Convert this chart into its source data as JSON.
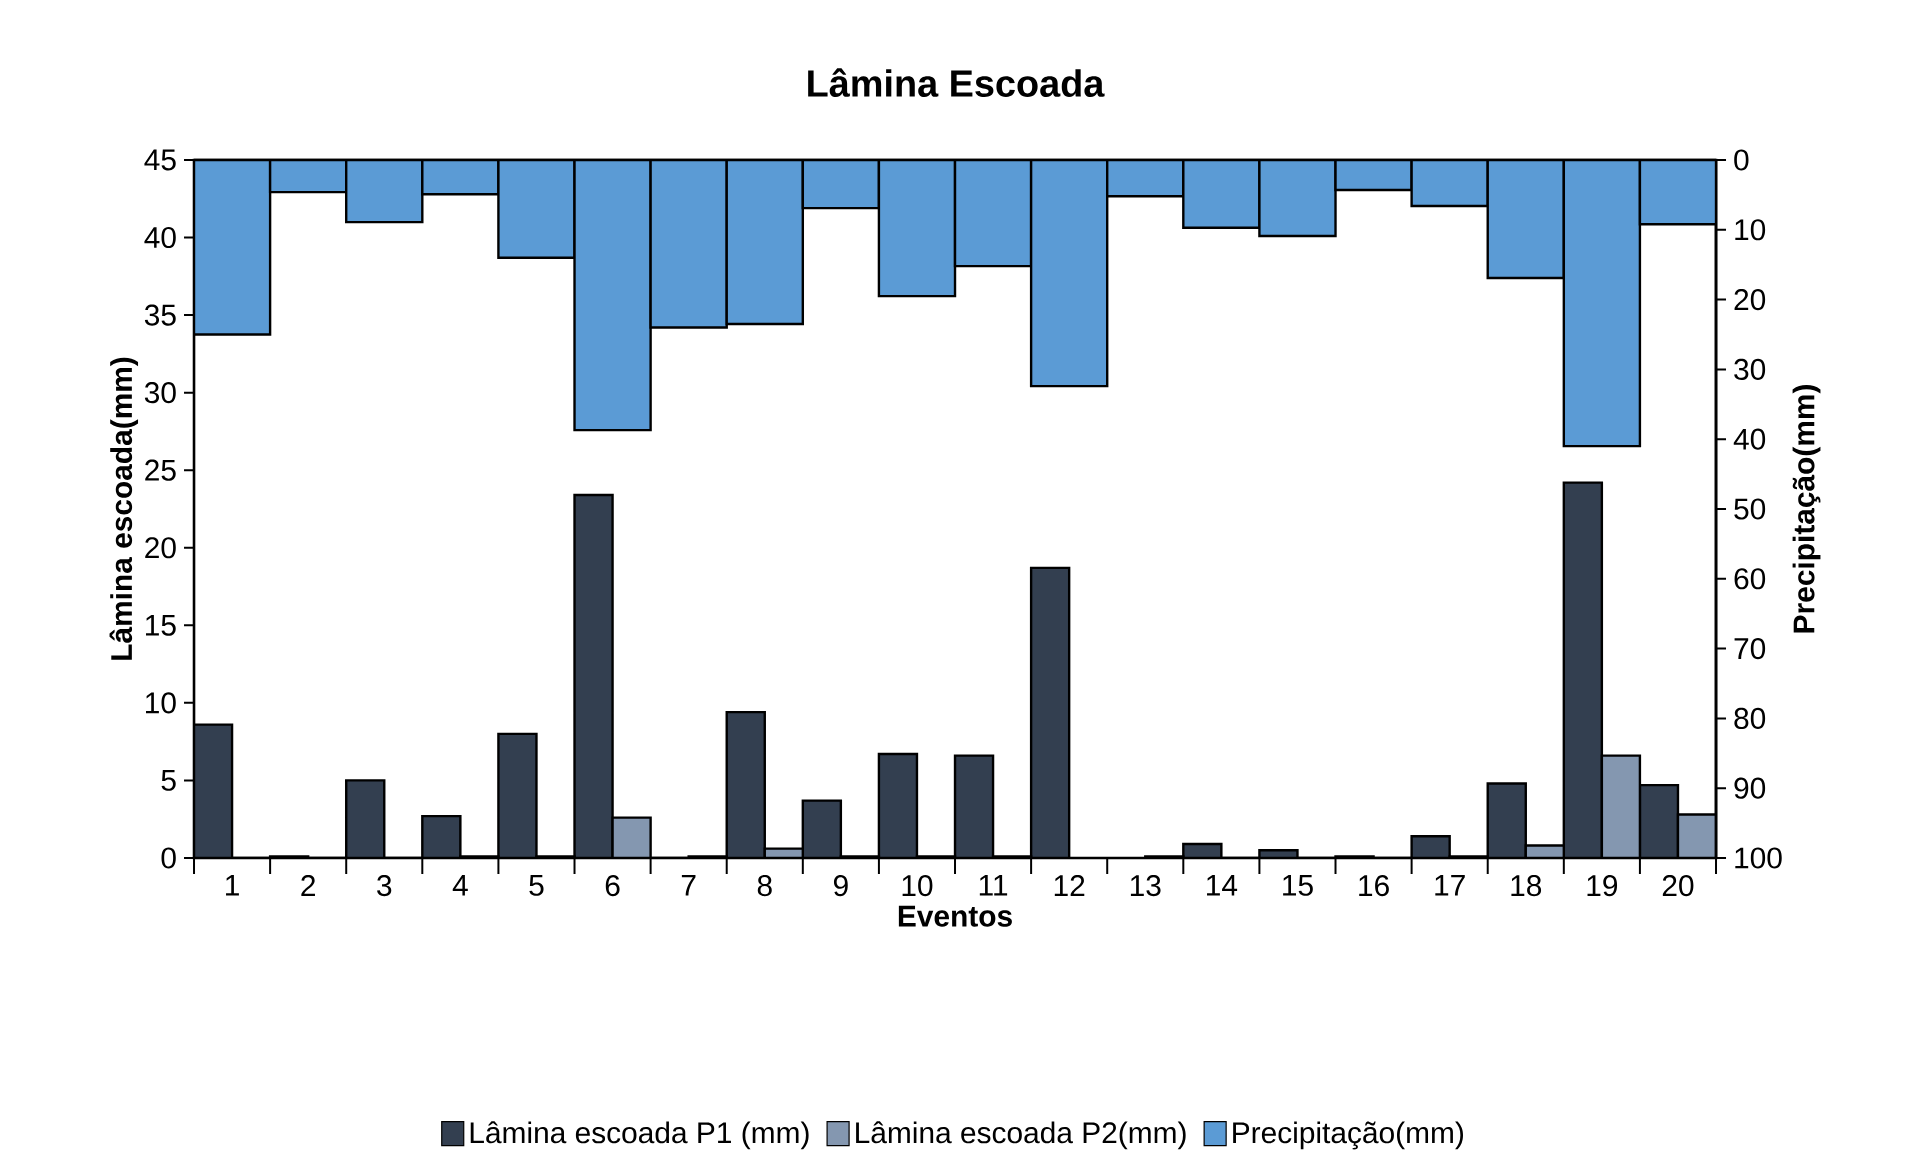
{
  "chart_data": {
    "type": "bar",
    "title": "Lâmina Escoada",
    "xlabel": "Eventos",
    "ylabel": "Lâmina escoada(mm)",
    "y2label": "Precipitação(mm)",
    "categories": [
      "1",
      "2",
      "3",
      "4",
      "5",
      "6",
      "7",
      "8",
      "9",
      "10",
      "11",
      "12",
      "13",
      "14",
      "15",
      "16",
      "17",
      "18",
      "19",
      "20"
    ],
    "series": [
      {
        "name": "Lâmina escoada P1 (mm)",
        "color": "#333f50",
        "values": [
          8.6,
          0.1,
          5.0,
          2.7,
          8.0,
          23.4,
          0,
          9.4,
          3.7,
          6.7,
          6.6,
          18.7,
          null,
          0.9,
          0.5,
          0.1,
          1.4,
          4.8,
          24.2,
          4.7
        ]
      },
      {
        "name": "Lâmina escoada P2(mm)",
        "color": "#8497b0",
        "values": [
          0,
          0,
          0,
          0.1,
          0.1,
          2.6,
          0.1,
          0.6,
          0.1,
          0.1,
          0.1,
          null,
          0.1,
          0,
          0,
          0,
          0.1,
          0.8,
          6.6,
          2.8
        ]
      },
      {
        "name": "Precipitação(mm)",
        "color": "#5b9bd5",
        "axis": "y2",
        "values": [
          25,
          4.6,
          8.9,
          4.9,
          14,
          38.7,
          24,
          23.5,
          6.9,
          19.5,
          15.2,
          32.4,
          5.2,
          9.7,
          10.9,
          4.3,
          6.6,
          16.9,
          41,
          9.2
        ]
      }
    ],
    "ylim": [
      0,
      45
    ],
    "yticks": [
      0,
      5,
      10,
      15,
      20,
      25,
      30,
      35,
      40,
      45
    ],
    "y2lim": [
      100,
      0
    ],
    "y2ticks": [
      0,
      10,
      20,
      30,
      40,
      50,
      60,
      70,
      80,
      90,
      100
    ],
    "legend": "bottom"
  }
}
